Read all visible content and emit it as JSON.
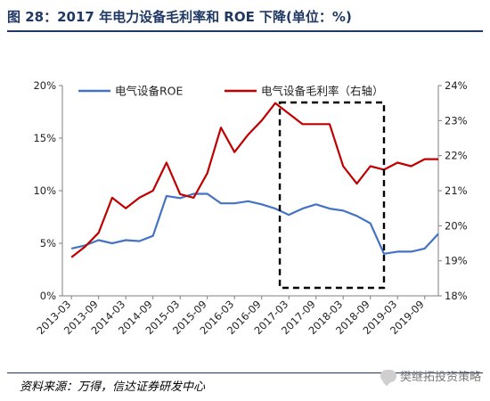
{
  "header": {
    "title": "图 28：2017 年电力设备毛利率和 ROE 下降(单位：%)"
  },
  "footer": {
    "source": "资料来源：万得，信达证券研发中心",
    "watermark": "樊继拓投资策略"
  },
  "colors": {
    "roe": "#4472c4",
    "margin": "#c00000",
    "axis": "#7f7f7f",
    "title": "#1f3864"
  },
  "chart_data": {
    "type": "line",
    "x": [
      "2013-03",
      "2013-06",
      "2013-09",
      "2013-12",
      "2014-03",
      "2014-06",
      "2014-09",
      "2014-12",
      "2015-03",
      "2015-06",
      "2015-09",
      "2015-12",
      "2016-03",
      "2016-06",
      "2016-09",
      "2016-12",
      "2017-03",
      "2017-06",
      "2017-09",
      "2017-12",
      "2018-03",
      "2018-06",
      "2018-09",
      "2018-12",
      "2019-03",
      "2019-06",
      "2019-09",
      "2019-12"
    ],
    "x_tick_labels": [
      "2013-03",
      "2013-09",
      "2014-03",
      "2014-09",
      "2015-03",
      "2015-09",
      "2016-03",
      "2016-09",
      "2017-03",
      "2017-09",
      "2018-03",
      "2018-09",
      "2019-03",
      "2019-09"
    ],
    "series": [
      {
        "name": "电气设备ROE",
        "axis": "left",
        "values": [
          4.5,
          4.8,
          5.3,
          5.0,
          5.3,
          5.2,
          5.7,
          9.5,
          9.3,
          9.7,
          9.7,
          8.8,
          8.8,
          9.0,
          8.7,
          8.3,
          7.7,
          8.3,
          8.7,
          8.3,
          8.1,
          7.6,
          6.9,
          4.0,
          4.2,
          4.2,
          4.5,
          5.9
        ]
      },
      {
        "name": "电气设备毛利率（右轴）",
        "axis": "right",
        "values": [
          19.1,
          19.4,
          19.8,
          20.8,
          20.5,
          20.8,
          21.0,
          21.8,
          20.9,
          20.8,
          21.5,
          22.8,
          22.1,
          22.6,
          23.0,
          23.5,
          23.2,
          22.9,
          22.9,
          22.9,
          21.7,
          21.2,
          21.7,
          21.6,
          21.8,
          21.7,
          21.9,
          21.9
        ]
      }
    ],
    "y_left": {
      "min": 0,
      "max": 20,
      "ticks": [
        "0%",
        "5%",
        "10%",
        "15%",
        "20%"
      ]
    },
    "y_right": {
      "min": 18,
      "max": 24,
      "ticks": [
        "18%",
        "19%",
        "20%",
        "21%",
        "22%",
        "23%",
        "24%"
      ]
    },
    "highlight_box": {
      "x_start": "2017-01",
      "x_end": "2018-12",
      "style": "dashed"
    },
    "legend_position": "top",
    "grid": false
  }
}
